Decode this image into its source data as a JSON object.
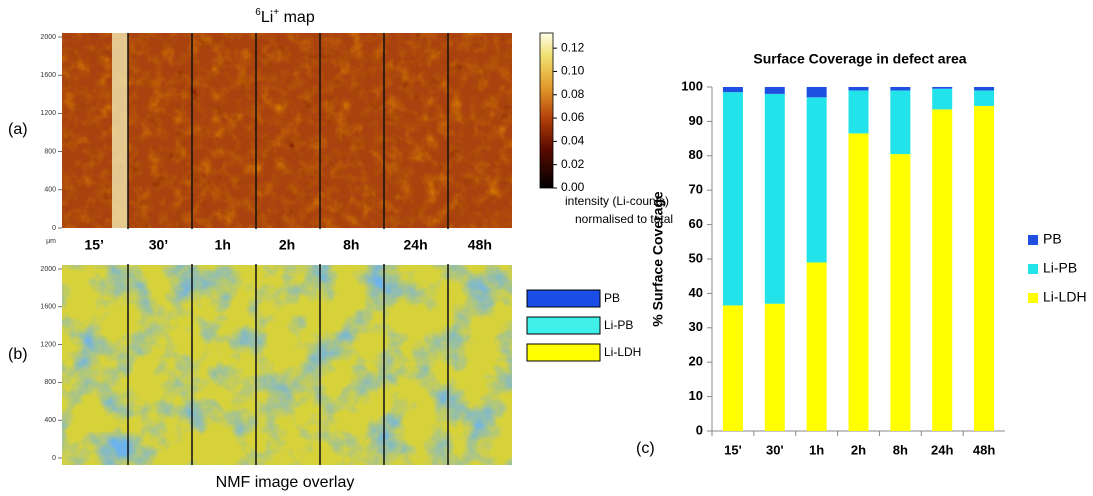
{
  "panel_labels": [
    "(a)",
    "(b)",
    "(c)"
  ],
  "map_title": {
    "mass": "6",
    "symbol": "Li",
    "charge": "+",
    "text": "map"
  },
  "overlay_title": "NMF image overlay",
  "times": [
    "15’",
    "30’",
    "1h",
    "2h",
    "8h",
    "24h",
    "48h"
  ],
  "map_axis": {
    "ylim": [
      0,
      2000
    ],
    "yticks": [
      0,
      400,
      800,
      1200,
      1600,
      2000
    ],
    "unit": "μm"
  },
  "colorbar": {
    "ylim": [
      0,
      0.133
    ],
    "yticks": [
      {
        "value": 0,
        "label": "0.00"
      },
      {
        "value": 0.02,
        "label": "0.02"
      },
      {
        "value": 0.04,
        "label": "0.04"
      },
      {
        "value": 0.06,
        "label": "0.06"
      },
      {
        "value": 0.08,
        "label": "0.08"
      },
      {
        "value": 0.1,
        "label": "0.10"
      },
      {
        "value": 0.12,
        "label": "0.12"
      }
    ],
    "label": [
      "intensity (Li-counts)",
      "normalised to total"
    ]
  },
  "overlay_legend": [
    {
      "name": "PB",
      "color": "#1a4ee6"
    },
    {
      "name": "Li-PB",
      "color": "#3ff0ea"
    },
    {
      "name": "Li-LDH",
      "color": "#ffff00"
    }
  ],
  "chart_data": {
    "type": "stacked_bar",
    "title": "Surface Coverage in defect area",
    "y_label": "% Surface Coverage",
    "categories": [
      "15'",
      "30'",
      "1h",
      "2h",
      "8h",
      "24h",
      "48h"
    ],
    "series": [
      {
        "name": "Li-LDH",
        "color": "#ffff00",
        "values": [
          36.5,
          37,
          49,
          86.5,
          80.5,
          93.5,
          94.5
        ]
      },
      {
        "name": "Li-PB",
        "color": "#22e3ea",
        "values": [
          62,
          61,
          48,
          12.5,
          18.5,
          6,
          4.5
        ]
      },
      {
        "name": "PB",
        "color": "#1f4fe0",
        "values": [
          1.5,
          2,
          3,
          1,
          1,
          0.5,
          1
        ]
      }
    ],
    "ylim": [
      0,
      100
    ],
    "yticks": [
      0,
      10,
      20,
      30,
      40,
      50,
      60,
      70,
      80,
      90,
      100
    ],
    "grid": false
  }
}
